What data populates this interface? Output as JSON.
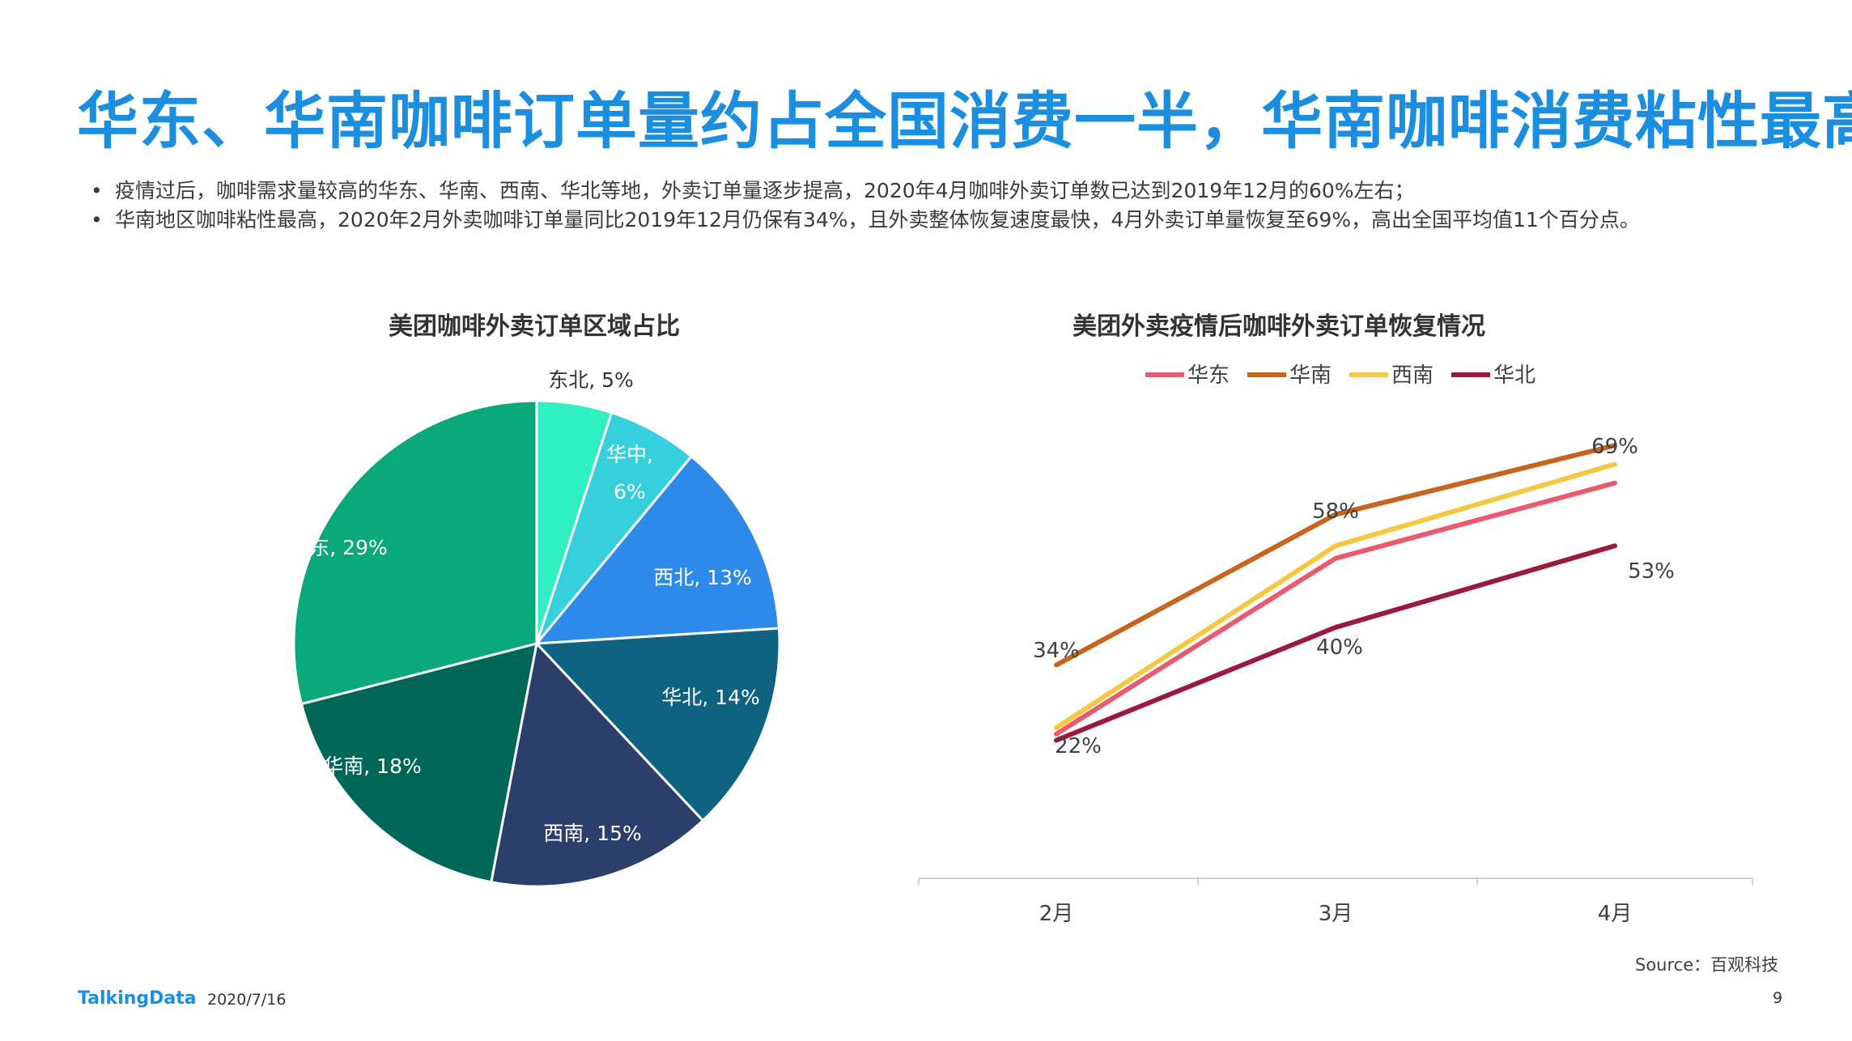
{
  "page": {
    "title": "华东、华南咖啡订单量约占全国消费一半，华南咖啡消费粘性最高",
    "bullets": [
      "疫情过后，咖啡需求量较高的华东、华南、西南、华北等地，外卖订单量逐步提高，2020年4月咖啡外卖订单数已达到2019年12月的60%左右；",
      "华南地区咖啡粘性最高，2020年2月外卖咖啡订单量同比2019年12月仍保有34%，且外卖整体恢复速度最快，4月外卖订单量恢复至69%，高出全国平均值11个百分点。"
    ],
    "source": "Source：百观科技",
    "brand": "TalkingData",
    "date": "2020/7/16",
    "page_number": "9"
  },
  "chart_data": [
    {
      "type": "pie",
      "title": "美团咖啡外卖订单区域占比",
      "slices": [
        {
          "label": "东北",
          "value": 5,
          "color": "#2ef0c0"
        },
        {
          "label": "华中",
          "value": 6,
          "color": "#36d0dc"
        },
        {
          "label": "西北",
          "value": 13,
          "color": "#2e8ae8"
        },
        {
          "label": "华北",
          "value": 14,
          "color": "#0f6280"
        },
        {
          "label": "西南",
          "value": 15,
          "color": "#2c3e6a"
        },
        {
          "label": "华南",
          "value": 18,
          "color": "#006758"
        },
        {
          "label": "华东",
          "value": 29,
          "color": "#0ba87a"
        }
      ],
      "data_labels": [
        "东北, 5%",
        "华中, 6%",
        "西北, 13%",
        "华北, 14%",
        "西南, 15%",
        "华南, 18%",
        "华东, 29%"
      ]
    },
    {
      "type": "line",
      "title": "美团外卖疫情后咖啡外卖订单恢复情况",
      "categories": [
        "2月",
        "3月",
        "4月"
      ],
      "ylim": [
        0,
        80
      ],
      "legend_position": "top",
      "series": [
        {
          "name": "华东",
          "color": "#ea5a6e",
          "values": [
            23,
            51,
            63
          ]
        },
        {
          "name": "华南",
          "color": "#c8641e",
          "values": [
            34,
            58,
            69
          ]
        },
        {
          "name": "西南",
          "color": "#f5c842",
          "values": [
            24,
            53,
            66
          ]
        },
        {
          "name": "华北",
          "color": "#9a1a3c",
          "values": [
            22,
            40,
            53
          ]
        }
      ],
      "data_labels": [
        "34%",
        "58%",
        "69%",
        "22%",
        "40%",
        "53%"
      ]
    }
  ]
}
